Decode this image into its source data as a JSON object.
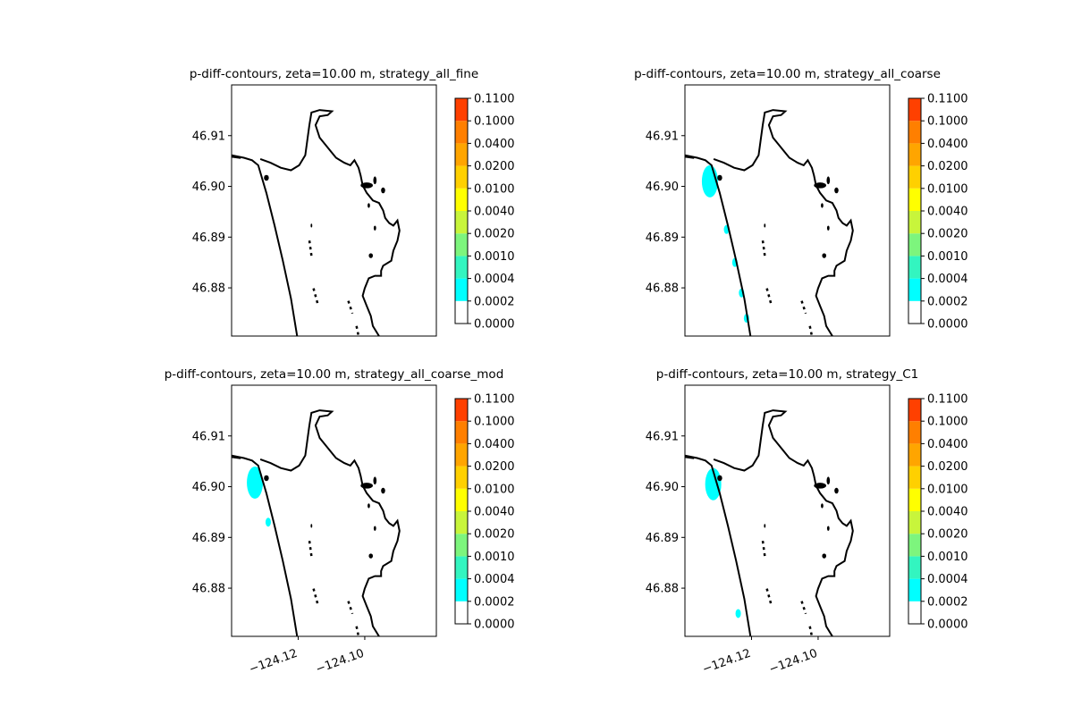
{
  "chart_data": {
    "type": "contour",
    "panels": [
      {
        "title": "p-diff-contours, zeta=10.00 m, strategy_all_fine",
        "yticks": [
          "46.91",
          "46.90",
          "46.89",
          "46.88"
        ],
        "xticks": [],
        "ytick_values": [
          46.91,
          46.9,
          46.89,
          46.88
        ],
        "blobs": []
      },
      {
        "title": "p-diff-contours, zeta=10.00 m, strategy_all_coarse",
        "yticks": [
          "46.91",
          "46.90",
          "46.89",
          "46.88"
        ],
        "xticks": [],
        "ytick_values": [
          46.91,
          46.9,
          46.89,
          46.88
        ],
        "blobs": [
          {
            "lon": -124.1325,
            "lat": 46.901,
            "level": 0.0002
          },
          {
            "lon": -124.1275,
            "lat": 46.8915,
            "level": 0.0002
          },
          {
            "lon": -124.125,
            "lat": 46.885,
            "level": 0.0002
          },
          {
            "lon": -124.123,
            "lat": 46.879,
            "level": 0.0002
          },
          {
            "lon": -124.1215,
            "lat": 46.874,
            "level": 0.0002
          }
        ]
      },
      {
        "title": "p-diff-contours, zeta=10.00 m, strategy_all_coarse_mod",
        "yticks": [
          "46.91",
          "46.90",
          "46.89",
          "46.88"
        ],
        "xticks": [
          "−124.12",
          "−124.10"
        ],
        "ytick_values": [
          46.91,
          46.9,
          46.89,
          46.88
        ],
        "blobs": [
          {
            "lon": -124.133,
            "lat": 46.9008,
            "level": 0.0002
          },
          {
            "lon": -124.129,
            "lat": 46.893,
            "level": 0.0002
          }
        ]
      },
      {
        "title": "p-diff-contours, zeta=10.00 m, strategy_C1",
        "yticks": [
          "46.91",
          "46.90",
          "46.89",
          "46.88"
        ],
        "xticks": [
          "−124.12",
          "−124.10"
        ],
        "ytick_values": [
          46.91,
          46.9,
          46.89,
          46.88
        ],
        "blobs": [
          {
            "lon": -124.1315,
            "lat": 46.9005,
            "level": 0.0002
          },
          {
            "lon": -124.124,
            "lat": 46.875,
            "level": 0.0002
          }
        ]
      }
    ],
    "xtick_values": [
      -124.12,
      -124.1
    ],
    "xlim": [
      -124.14,
      -124.0785
    ],
    "ylim": [
      46.8705,
      46.92
    ],
    "colorbar": {
      "levels": [
        "0.0000",
        "0.0002",
        "0.0004",
        "0.0010",
        "0.0020",
        "0.0040",
        "0.0100",
        "0.0200",
        "0.0400",
        "0.1000",
        "0.1100"
      ],
      "colors": [
        "#ffffff",
        "#00ffff",
        "#33f5c0",
        "#7df57d",
        "#c8f53b",
        "#ffff00",
        "#ffd000",
        "#ffa500",
        "#ff7f00",
        "#ff4000",
        "#ff0000"
      ]
    },
    "coast_color": "#000000"
  }
}
